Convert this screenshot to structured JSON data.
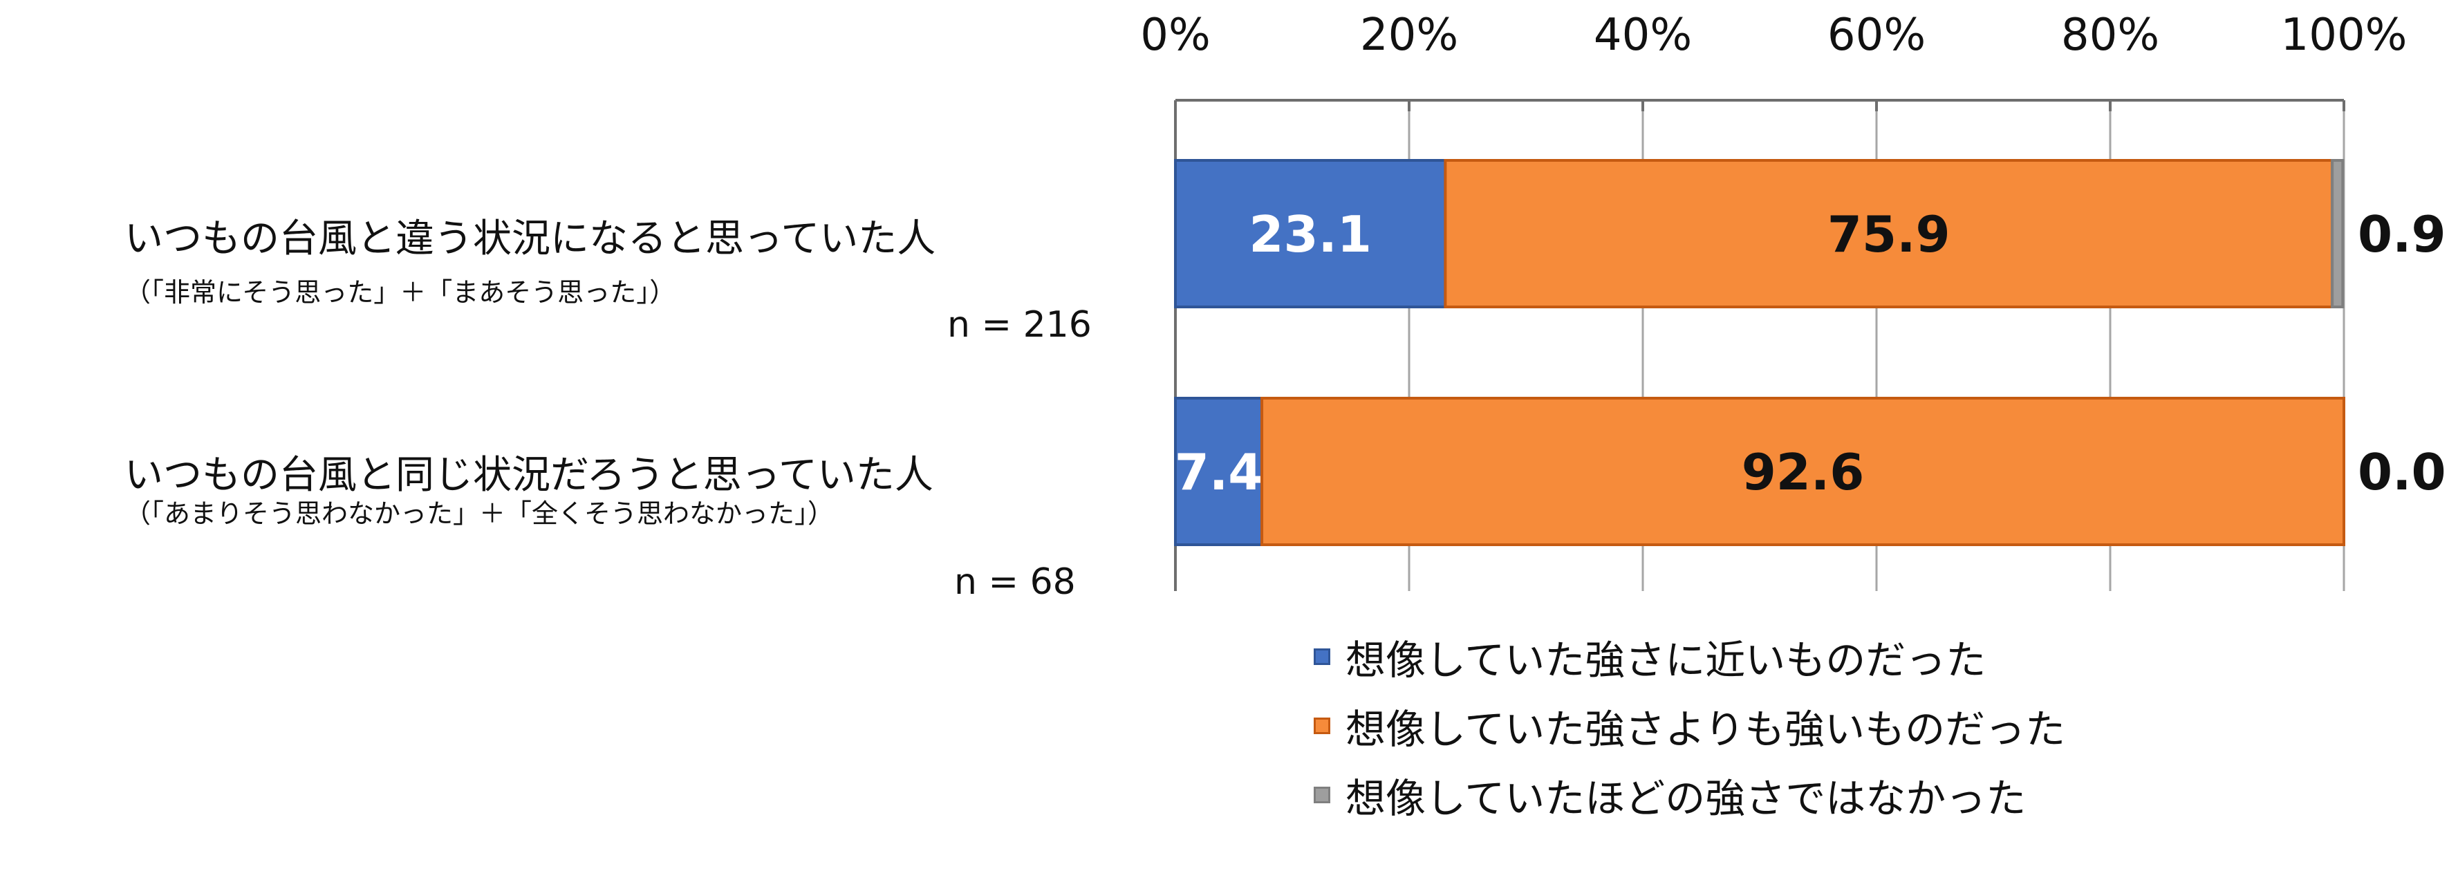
{
  "chart_data": {
    "type": "bar",
    "orientation": "horizontal",
    "stacked": true,
    "xlim": [
      0,
      100
    ],
    "x_ticks": [
      "0%",
      "20%",
      "40%",
      "60%",
      "80%",
      "100%"
    ],
    "grid": true,
    "legend_position": "bottom",
    "categories": [
      {
        "title": "いつもの台風と違う状況になると思っていた人",
        "subtitle": "（「非常にそう思った」＋「まあそう思った」）",
        "n": "n = 216"
      },
      {
        "title": "いつもの台風と同じ状況だろうと思っていた人",
        "subtitle": "（「あまりそう思わなかった」＋「全くそう思わなかった」）",
        "n": "n = 68"
      }
    ],
    "series": [
      {
        "name": "想像していた強さに近いものだった",
        "color": "#4472C4",
        "values": [
          23.1,
          7.4
        ],
        "labels": [
          "23.1",
          "7.4"
        ],
        "label_color": "#ffffff"
      },
      {
        "name": "想像していた強さよりも強いものだった",
        "color": "#F68B3A",
        "values": [
          75.9,
          92.6
        ],
        "labels": [
          "75.9",
          "92.6"
        ],
        "label_color": "#111111"
      },
      {
        "name": "想像していたほどの強さではなかった",
        "color": "#9E9E9E",
        "values": [
          0.9,
          0.0
        ],
        "labels": [
          "0.9",
          "0.0"
        ],
        "label_color": "#111111"
      }
    ]
  }
}
